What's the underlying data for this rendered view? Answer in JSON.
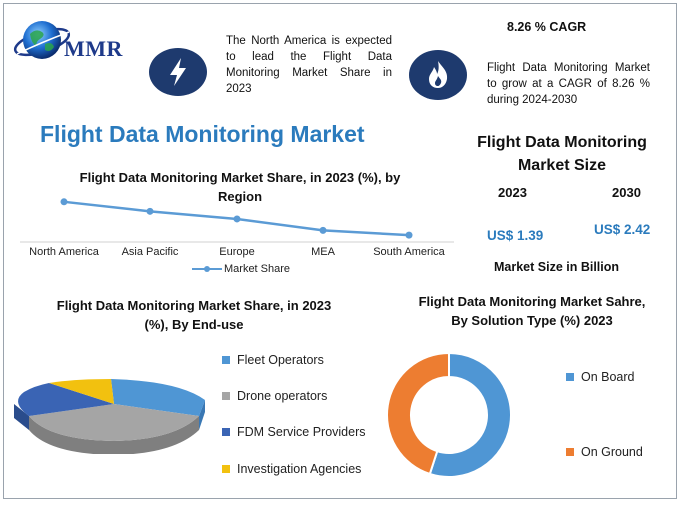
{
  "logo": {
    "text": "MMR"
  },
  "callout_left": {
    "text": "The North America is expected to lead the Flight Data Monitoring Market Share in 2023"
  },
  "cagr": {
    "title": "8.26 % CAGR",
    "text": "Flight Data Monitoring Market to grow at a CAGR of 8.26 % during 2024-2030"
  },
  "main_title": "Flight Data Monitoring Market",
  "icons": {
    "left": "lightning-bolt-icon",
    "right": "flame-icon"
  },
  "market_size": {
    "title": "Flight Data Monitoring Market Size",
    "year_start": "2023",
    "year_end": "2030",
    "value_start": "US$ 1.39",
    "value_end": "US$ 2.42",
    "unit_note": "Market Size in Billion"
  },
  "colors": {
    "accent": "#2b7bbd",
    "line": "#5b9bd5",
    "on_board": "#4f96d4",
    "on_ground": "#ed7d31",
    "navy": "#1e3a6e"
  },
  "chart_data": [
    {
      "type": "line",
      "title": "Flight Data Monitoring Market Share, in 2023 (%), by Region",
      "categories": [
        "North America",
        "Asia Pacific",
        "Europe",
        "MEA",
        "South America"
      ],
      "series": [
        {
          "name": "Market Share",
          "values": [
            38,
            28,
            20,
            8,
            3
          ]
        }
      ],
      "ylim": [
        0,
        42
      ],
      "legend": "bottom"
    },
    {
      "type": "pie",
      "title": "Flight Data Monitoring Market Share, in 2023 (%), By End-use",
      "labels": [
        "Fleet Operators",
        "Drone operators",
        "FDM Service Providers",
        "Investigation Agencies"
      ],
      "values": [
        34,
        36,
        18,
        12
      ],
      "colors": [
        "#4f96d4",
        "#a5a5a5",
        "#3a64b4",
        "#f2c10f"
      ],
      "legend": "right"
    },
    {
      "type": "pie",
      "title": "Flight Data Monitoring Market Sahre, By Solution Type (%) 2023",
      "labels": [
        "On Board",
        "On Ground"
      ],
      "values": [
        55,
        45
      ],
      "colors": [
        "#4f96d4",
        "#ed7d31"
      ],
      "legend": "right"
    }
  ]
}
